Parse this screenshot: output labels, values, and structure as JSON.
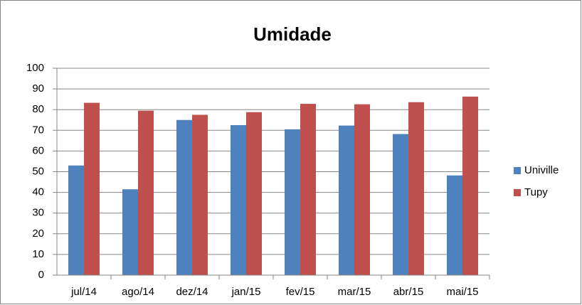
{
  "chart_data": {
    "type": "bar",
    "title": "Umidade",
    "categories": [
      "jul/14",
      "ago/14",
      "dez/14",
      "jan/15",
      "fev/15",
      "mar/15",
      "abr/15",
      "mai/15"
    ],
    "series": [
      {
        "name": "Univille",
        "color": "#4f81bd",
        "values": [
          53,
          41.5,
          75,
          72.5,
          70.5,
          72.3,
          68.2,
          48.2
        ]
      },
      {
        "name": "Tupy",
        "color": "#c0504d",
        "values": [
          83.3,
          79.5,
          77.5,
          78.8,
          82.8,
          82.6,
          83.6,
          86.3
        ]
      }
    ],
    "ylim": [
      0,
      100
    ],
    "yticks": [
      0,
      10,
      20,
      30,
      40,
      50,
      60,
      70,
      80,
      90,
      100
    ],
    "grid": true,
    "legend": "right"
  }
}
